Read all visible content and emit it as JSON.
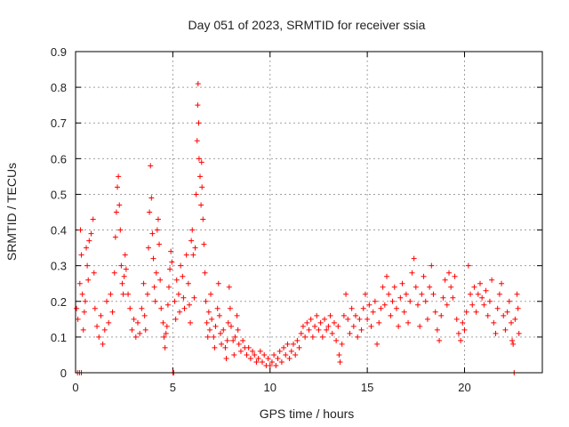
{
  "chart_data": {
    "type": "scatter",
    "marker": "+",
    "title": "Day 051 of 2023, SRMTID for receiver ssia",
    "xlabel": "GPS time / hours",
    "ylabel": "SRMTID / TECUs",
    "xlim": [
      0,
      24
    ],
    "ylim": [
      0,
      0.9
    ],
    "xticks": [
      0,
      5,
      10,
      15,
      20
    ],
    "xtick_labels": [
      "0",
      "5",
      "10",
      "15",
      "20"
    ],
    "yticks": [
      0,
      0.1,
      0.2,
      0.3,
      0.4,
      0.5,
      0.6,
      0.7,
      0.8,
      0.9
    ],
    "ytick_labels": [
      "0",
      "0.1",
      "0.2",
      "0.3",
      "0.4",
      "0.5",
      "0.6",
      "0.7",
      "0.8",
      "0.9"
    ],
    "grid": true,
    "series": [
      {
        "name": "SRMTID",
        "color": "#ff0000",
        "points": [
          [
            0.05,
            0.18
          ],
          [
            0.1,
            0.0
          ],
          [
            0.12,
            0.15
          ],
          [
            0.2,
            0.0
          ],
          [
            0.22,
            0.25
          ],
          [
            0.25,
            0.4
          ],
          [
            0.3,
            0.33
          ],
          [
            0.3,
            0.0
          ],
          [
            0.35,
            0.22
          ],
          [
            0.4,
            0.12
          ],
          [
            0.45,
            0.17
          ],
          [
            0.5,
            0.2
          ],
          [
            0.55,
            0.35
          ],
          [
            0.6,
            0.3
          ],
          [
            0.65,
            0.26
          ],
          [
            0.7,
            0.37
          ],
          [
            0.8,
            0.39
          ],
          [
            0.9,
            0.43
          ],
          [
            0.95,
            0.28
          ],
          [
            1.0,
            0.18
          ],
          [
            1.1,
            0.13
          ],
          [
            1.2,
            0.1
          ],
          [
            1.3,
            0.16
          ],
          [
            1.4,
            0.08
          ],
          [
            1.5,
            0.12
          ],
          [
            1.6,
            0.2
          ],
          [
            1.7,
            0.14
          ],
          [
            1.8,
            0.22
          ],
          [
            1.9,
            0.17
          ],
          [
            2.0,
            0.28
          ],
          [
            2.05,
            0.38
          ],
          [
            2.1,
            0.45
          ],
          [
            2.15,
            0.52
          ],
          [
            2.2,
            0.55
          ],
          [
            2.25,
            0.47
          ],
          [
            2.3,
            0.4
          ],
          [
            2.35,
            0.3
          ],
          [
            2.4,
            0.25
          ],
          [
            2.45,
            0.22
          ],
          [
            2.5,
            0.27
          ],
          [
            2.55,
            0.33
          ],
          [
            2.6,
            0.29
          ],
          [
            2.7,
            0.22
          ],
          [
            2.8,
            0.18
          ],
          [
            2.9,
            0.12
          ],
          [
            3.0,
            0.15
          ],
          [
            3.1,
            0.1
          ],
          [
            3.2,
            0.14
          ],
          [
            3.3,
            0.11
          ],
          [
            3.4,
            0.18
          ],
          [
            3.5,
            0.25
          ],
          [
            3.55,
            0.16
          ],
          [
            3.6,
            0.12
          ],
          [
            3.7,
            0.22
          ],
          [
            3.75,
            0.35
          ],
          [
            3.8,
            0.45
          ],
          [
            3.85,
            0.58
          ],
          [
            3.9,
            0.49
          ],
          [
            3.95,
            0.39
          ],
          [
            4.0,
            0.32
          ],
          [
            4.05,
            0.24
          ],
          [
            4.1,
            0.2
          ],
          [
            4.15,
            0.28
          ],
          [
            4.2,
            0.4
          ],
          [
            4.25,
            0.43
          ],
          [
            4.3,
            0.36
          ],
          [
            4.35,
            0.26
          ],
          [
            4.4,
            0.18
          ],
          [
            4.5,
            0.14
          ],
          [
            4.55,
            0.1
          ],
          [
            4.6,
            0.07
          ],
          [
            4.65,
            0.11
          ],
          [
            4.7,
            0.13
          ],
          [
            4.75,
            0.19
          ],
          [
            4.8,
            0.24
          ],
          [
            4.85,
            0.29
          ],
          [
            4.9,
            0.34
          ],
          [
            4.95,
            0.31
          ],
          [
            5.0,
            0.0
          ],
          [
            5.05,
            0.0
          ],
          [
            5.1,
            0.2
          ],
          [
            5.15,
            0.15
          ],
          [
            5.2,
            0.26
          ],
          [
            5.3,
            0.22
          ],
          [
            5.35,
            0.17
          ],
          [
            5.4,
            0.3
          ],
          [
            5.5,
            0.27
          ],
          [
            5.55,
            0.21
          ],
          [
            5.6,
            0.18
          ],
          [
            5.7,
            0.33
          ],
          [
            5.8,
            0.25
          ],
          [
            5.85,
            0.19
          ],
          [
            5.9,
            0.14
          ],
          [
            5.95,
            0.37
          ],
          [
            6.0,
            0.4
          ],
          [
            6.05,
            0.33
          ],
          [
            6.1,
            0.21
          ],
          [
            6.15,
            0.35
          ],
          [
            6.2,
            0.5
          ],
          [
            6.25,
            0.65
          ],
          [
            6.28,
            0.75
          ],
          [
            6.3,
            0.81
          ],
          [
            6.33,
            0.7
          ],
          [
            6.35,
            0.6
          ],
          [
            6.4,
            0.55
          ],
          [
            6.45,
            0.47
          ],
          [
            6.48,
            0.59
          ],
          [
            6.5,
            0.52
          ],
          [
            6.55,
            0.43
          ],
          [
            6.6,
            0.36
          ],
          [
            6.65,
            0.28
          ],
          [
            6.7,
            0.2
          ],
          [
            6.75,
            0.14
          ],
          [
            6.8,
            0.1
          ],
          [
            6.85,
            0.17
          ],
          [
            6.9,
            0.12
          ],
          [
            6.95,
            0.22
          ],
          [
            7.0,
            0.15
          ],
          [
            7.1,
            0.1
          ],
          [
            7.15,
            0.07
          ],
          [
            7.2,
            0.13
          ],
          [
            7.3,
            0.18
          ],
          [
            7.35,
            0.25
          ],
          [
            7.4,
            0.16
          ],
          [
            7.45,
            0.11
          ],
          [
            7.5,
            0.08
          ],
          [
            7.6,
            0.12
          ],
          [
            7.7,
            0.07
          ],
          [
            7.75,
            0.04
          ],
          [
            7.8,
            0.09
          ],
          [
            7.85,
            0.14
          ],
          [
            7.9,
            0.24
          ],
          [
            7.95,
            0.18
          ],
          [
            8.0,
            0.13
          ],
          [
            8.1,
            0.09
          ],
          [
            8.15,
            0.05
          ],
          [
            8.2,
            0.1
          ],
          [
            8.3,
            0.16
          ],
          [
            8.35,
            0.12
          ],
          [
            8.4,
            0.08
          ],
          [
            8.5,
            0.06
          ],
          [
            8.6,
            0.09
          ],
          [
            8.7,
            0.07
          ],
          [
            8.8,
            0.05
          ],
          [
            8.9,
            0.07
          ],
          [
            9.0,
            0.04
          ],
          [
            9.1,
            0.06
          ],
          [
            9.2,
            0.05
          ],
          [
            9.3,
            0.03
          ],
          [
            9.4,
            0.04
          ],
          [
            9.5,
            0.06
          ],
          [
            9.6,
            0.03
          ],
          [
            9.7,
            0.05
          ],
          [
            9.8,
            0.02
          ],
          [
            9.9,
            0.04
          ],
          [
            10.0,
            0.02
          ],
          [
            10.1,
            0.03
          ],
          [
            10.2,
            0.05
          ],
          [
            10.3,
            0.02
          ],
          [
            10.4,
            0.04
          ],
          [
            10.5,
            0.06
          ],
          [
            10.6,
            0.03
          ],
          [
            10.7,
            0.07
          ],
          [
            10.8,
            0.05
          ],
          [
            10.9,
            0.08
          ],
          [
            11.0,
            0.04
          ],
          [
            11.1,
            0.06
          ],
          [
            11.2,
            0.08
          ],
          [
            11.3,
            0.05
          ],
          [
            11.4,
            0.09
          ],
          [
            11.5,
            0.07
          ],
          [
            11.6,
            0.11
          ],
          [
            11.7,
            0.13
          ],
          [
            11.8,
            0.1
          ],
          [
            11.9,
            0.14
          ],
          [
            12.0,
            0.12
          ],
          [
            12.1,
            0.15
          ],
          [
            12.2,
            0.1
          ],
          [
            12.3,
            0.13
          ],
          [
            12.4,
            0.16
          ],
          [
            12.5,
            0.12
          ],
          [
            12.6,
            0.14
          ],
          [
            12.7,
            0.1
          ],
          [
            12.8,
            0.15
          ],
          [
            12.9,
            0.12
          ],
          [
            13.0,
            0.13
          ],
          [
            13.1,
            0.16
          ],
          [
            13.2,
            0.11
          ],
          [
            13.3,
            0.14
          ],
          [
            13.4,
            0.09
          ],
          [
            13.5,
            0.13
          ],
          [
            13.55,
            0.05
          ],
          [
            13.6,
            0.03
          ],
          [
            13.7,
            0.08
          ],
          [
            13.8,
            0.16
          ],
          [
            13.9,
            0.22
          ],
          [
            14.0,
            0.15
          ],
          [
            14.1,
            0.11
          ],
          [
            14.2,
            0.18
          ],
          [
            14.3,
            0.13
          ],
          [
            14.4,
            0.16
          ],
          [
            14.5,
            0.1
          ],
          [
            14.6,
            0.15
          ],
          [
            14.7,
            0.12
          ],
          [
            14.8,
            0.18
          ],
          [
            14.9,
            0.22
          ],
          [
            15.0,
            0.15
          ],
          [
            15.1,
            0.19
          ],
          [
            15.2,
            0.13
          ],
          [
            15.3,
            0.17
          ],
          [
            15.4,
            0.2
          ],
          [
            15.5,
            0.08
          ],
          [
            15.6,
            0.14
          ],
          [
            15.7,
            0.18
          ],
          [
            15.8,
            0.24
          ],
          [
            15.9,
            0.19
          ],
          [
            16.0,
            0.27
          ],
          [
            16.1,
            0.22
          ],
          [
            16.2,
            0.16
          ],
          [
            16.3,
            0.2
          ],
          [
            16.4,
            0.24
          ],
          [
            16.5,
            0.18
          ],
          [
            16.6,
            0.13
          ],
          [
            16.7,
            0.21
          ],
          [
            16.8,
            0.25
          ],
          [
            16.9,
            0.17
          ],
          [
            17.0,
            0.22
          ],
          [
            17.1,
            0.14
          ],
          [
            17.2,
            0.2
          ],
          [
            17.3,
            0.28
          ],
          [
            17.4,
            0.32
          ],
          [
            17.5,
            0.24
          ],
          [
            17.6,
            0.19
          ],
          [
            17.7,
            0.13
          ],
          [
            17.8,
            0.22
          ],
          [
            17.9,
            0.27
          ],
          [
            18.0,
            0.2
          ],
          [
            18.1,
            0.15
          ],
          [
            18.2,
            0.24
          ],
          [
            18.3,
            0.3
          ],
          [
            18.4,
            0.22
          ],
          [
            18.5,
            0.17
          ],
          [
            18.6,
            0.12
          ],
          [
            18.7,
            0.09
          ],
          [
            18.8,
            0.16
          ],
          [
            18.9,
            0.21
          ],
          [
            19.0,
            0.26
          ],
          [
            19.1,
            0.19
          ],
          [
            19.2,
            0.28
          ],
          [
            19.3,
            0.24
          ],
          [
            19.4,
            0.21
          ],
          [
            19.5,
            0.27
          ],
          [
            19.6,
            0.15
          ],
          [
            19.7,
            0.11
          ],
          [
            19.8,
            0.09
          ],
          [
            19.9,
            0.14
          ],
          [
            20.0,
            0.12
          ],
          [
            20.1,
            0.17
          ],
          [
            20.2,
            0.3
          ],
          [
            20.3,
            0.22
          ],
          [
            20.4,
            0.19
          ],
          [
            20.5,
            0.24
          ],
          [
            20.6,
            0.17
          ],
          [
            20.7,
            0.22
          ],
          [
            20.8,
            0.25
          ],
          [
            20.9,
            0.21
          ],
          [
            21.0,
            0.19
          ],
          [
            21.1,
            0.23
          ],
          [
            21.2,
            0.16
          ],
          [
            21.3,
            0.2
          ],
          [
            21.4,
            0.26
          ],
          [
            21.5,
            0.14
          ],
          [
            21.6,
            0.11
          ],
          [
            21.7,
            0.18
          ],
          [
            21.8,
            0.22
          ],
          [
            21.9,
            0.25
          ],
          [
            22.0,
            0.16
          ],
          [
            22.1,
            0.12
          ],
          [
            22.2,
            0.17
          ],
          [
            22.3,
            0.2
          ],
          [
            22.4,
            0.14
          ],
          [
            22.45,
            0.09
          ],
          [
            22.5,
            0.08
          ],
          [
            22.55,
            0.0
          ],
          [
            22.6,
            0.15
          ],
          [
            22.7,
            0.22
          ],
          [
            22.75,
            0.18
          ],
          [
            22.8,
            0.11
          ]
        ]
      }
    ]
  }
}
